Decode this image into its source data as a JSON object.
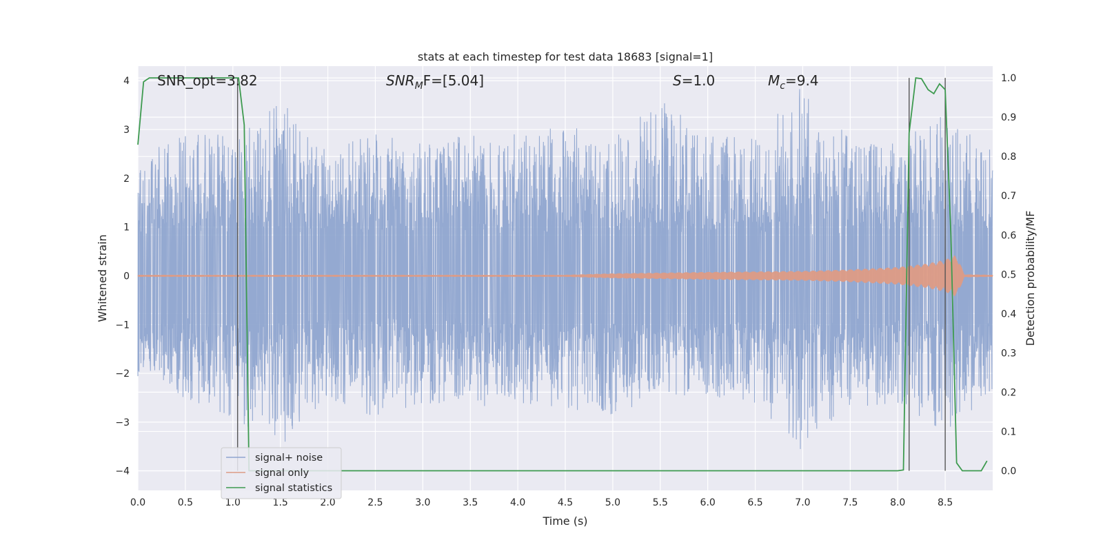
{
  "chart_data": {
    "type": "line",
    "title": "stats at each timestep for test data 18683 [signal=1]",
    "xlabel": "Time (s)",
    "ylabel": "Whitened strain",
    "ylabel_right": "Detection probability/MF",
    "xlim": [
      0.0,
      9.0
    ],
    "ylim": [
      -4.4,
      4.3
    ],
    "ylim_right": [
      -0.05,
      1.03
    ],
    "x_ticks": [
      "0.0",
      "0.5",
      "1.0",
      "1.5",
      "2.0",
      "2.5",
      "3.0",
      "3.5",
      "4.0",
      "4.5",
      "5.0",
      "5.5",
      "6.0",
      "6.5",
      "7.0",
      "7.5",
      "8.0",
      "8.5"
    ],
    "x_tick_values": [
      0,
      0.5,
      1,
      1.5,
      2,
      2.5,
      3,
      3.5,
      4,
      4.5,
      5,
      5.5,
      6,
      6.5,
      7,
      7.5,
      8,
      8.5
    ],
    "y_ticks": [
      "4",
      "3",
      "2",
      "1",
      "0",
      "−1",
      "−2",
      "−3",
      "−4"
    ],
    "y_tick_values": [
      4,
      3,
      2,
      1,
      0,
      -1,
      -2,
      -3,
      -4
    ],
    "y_ticks_right": [
      "1.0",
      "0.9",
      "0.8",
      "0.7",
      "0.6",
      "0.5",
      "0.4",
      "0.3",
      "0.2",
      "0.1",
      "0.0"
    ],
    "y_tick_values_right": [
      1.0,
      0.9,
      0.8,
      0.7,
      0.6,
      0.5,
      0.4,
      0.3,
      0.2,
      0.1,
      0.0
    ],
    "grid": true,
    "legend_position": "lower-left",
    "annotations": {
      "snr_opt": "SNR_opt=3.82",
      "snr_mf_main": "SNR",
      "snr_mf_sub": "M",
      "snr_mf_tail": "F=[5.04]",
      "s_main": "S",
      "s_tail": "=1.0",
      "mc_main": "M",
      "mc_sub": "c",
      "mc_tail": "=9.4"
    },
    "series": [
      {
        "name": "signal+ noise",
        "color": "#8fa5cf",
        "noise_envelope": {
          "x": [
            0.0,
            0.5,
            1.0,
            1.5,
            2.0,
            2.5,
            3.0,
            3.5,
            4.0,
            4.5,
            5.0,
            5.5,
            6.0,
            6.5,
            7.0,
            7.5,
            8.0,
            8.5,
            9.0
          ],
          "upper": [
            2.3,
            3.1,
            2.8,
            3.7,
            2.6,
            2.9,
            2.7,
            2.9,
            2.9,
            3.1,
            2.8,
            3.6,
            2.9,
            2.8,
            3.9,
            2.8,
            2.7,
            3.4,
            2.6
          ],
          "lower": [
            -2.2,
            -2.5,
            -2.9,
            -3.5,
            -2.5,
            -2.9,
            -2.6,
            -2.7,
            -2.6,
            -2.7,
            -2.9,
            -2.4,
            -2.5,
            -2.6,
            -3.6,
            -2.7,
            -2.6,
            -3.2,
            -2.4
          ]
        }
      },
      {
        "name": "signal only",
        "color": "#dd9b85",
        "chirp": {
          "x": [
            0.0,
            4.5,
            5.0,
            6.0,
            7.0,
            7.5,
            8.0,
            8.3,
            8.5,
            8.6,
            8.65,
            8.7,
            9.0
          ],
          "amplitude": [
            0.02,
            0.02,
            0.05,
            0.08,
            0.1,
            0.13,
            0.18,
            0.25,
            0.33,
            0.42,
            0.3,
            0.03,
            0.02
          ]
        }
      },
      {
        "name": "signal statistics",
        "color": "#3d9a4f",
        "x": [
          0.0,
          0.06,
          0.12,
          0.2,
          0.5,
          0.8,
          1.0,
          1.06,
          1.12,
          1.17,
          1.25,
          2.0,
          4.0,
          6.0,
          7.5,
          8.0,
          8.06,
          8.12,
          8.19,
          8.25,
          8.32,
          8.38,
          8.44,
          8.5,
          8.56,
          8.62,
          8.68,
          8.75,
          8.82,
          8.88,
          8.94
        ],
        "values": [
          0.83,
          0.99,
          1.0,
          1.0,
          1.0,
          1.0,
          1.0,
          1.0,
          0.88,
          0.0,
          0.0,
          0.0,
          0.0,
          0.0,
          0.0,
          0.0,
          0.002,
          0.86,
          1.0,
          0.998,
          0.97,
          0.96,
          0.985,
          0.97,
          0.6,
          0.02,
          0.0,
          0.0,
          0.0,
          0.0,
          0.025
        ]
      }
    ],
    "vertical_lines": [
      {
        "x": 1.05,
        "ymin": 0.0,
        "ymax": 1.0,
        "color": "#555555"
      },
      {
        "x": 8.12,
        "ymin": 0.0,
        "ymax": 1.0,
        "color": "#555555"
      },
      {
        "x": 8.5,
        "ymin": 0.0,
        "ymax": 1.0,
        "color": "#555555"
      }
    ]
  }
}
